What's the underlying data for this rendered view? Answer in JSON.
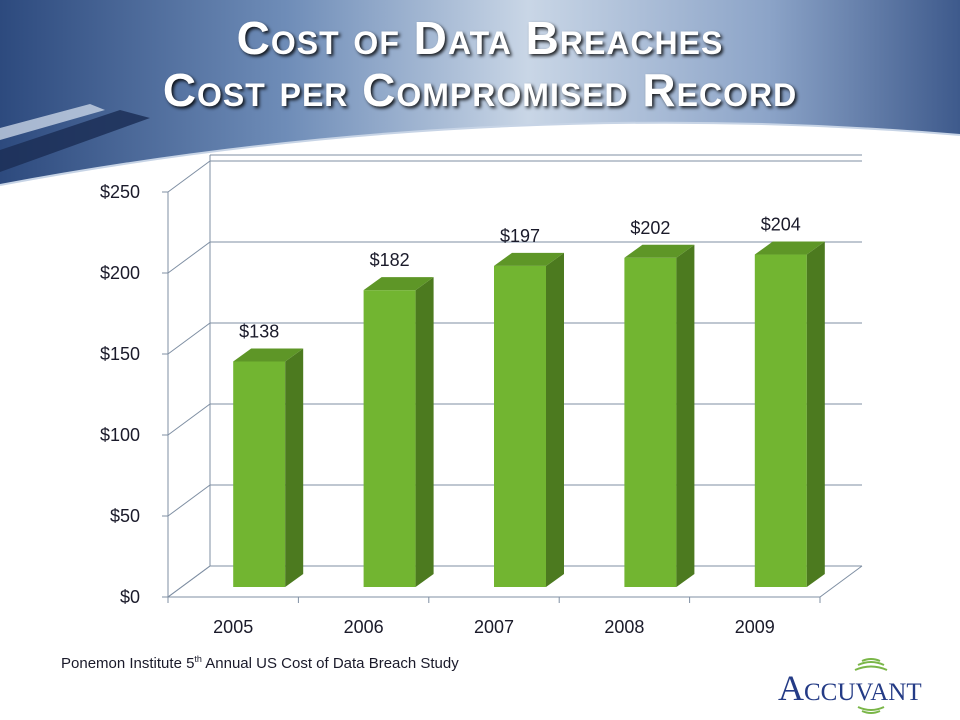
{
  "slide": {
    "title_line_1": "Cost of Data Breaches",
    "title_line_2": "Cost per Compromised Record",
    "source_prefix": "Ponemon Institute 5",
    "source_sup": "th",
    "source_suffix": " Annual US Cost of Data Breach Study",
    "logo_text": "Accuvant"
  },
  "colors": {
    "bar_front": "#72b531",
    "bar_side": "#4c7a1f",
    "bar_top": "#5e9627",
    "header_blue": "#3e5a8c"
  },
  "chart_data": {
    "type": "bar",
    "categories": [
      "2005",
      "2006",
      "2007",
      "2008",
      "2009"
    ],
    "values": [
      138,
      182,
      197,
      202,
      204
    ],
    "data_labels": [
      "$138",
      "$182",
      "$197",
      "$202",
      "$204"
    ],
    "y_ticks": [
      0,
      50,
      100,
      150,
      200,
      250
    ],
    "y_tick_labels": [
      "$0",
      "$50",
      "$100",
      "$150",
      "$200",
      "$250"
    ],
    "ylim": [
      0,
      250
    ],
    "grid": true,
    "legend": "none",
    "style": "3d-column"
  }
}
